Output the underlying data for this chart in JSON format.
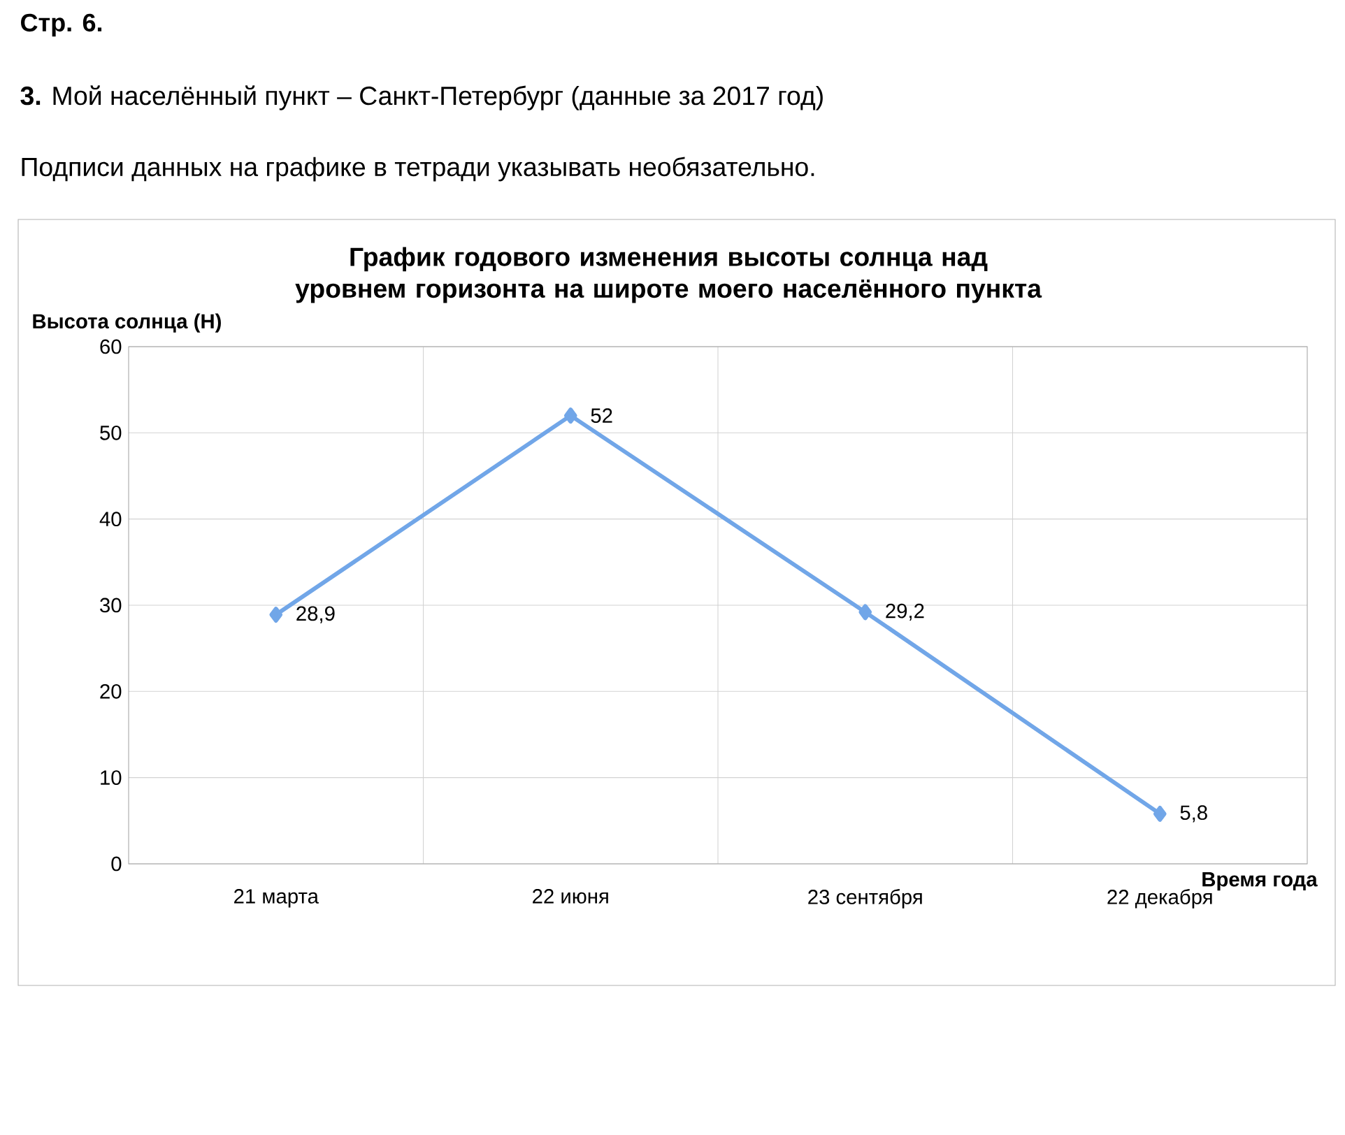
{
  "chart_data": {
    "type": "line",
    "title": "График годового изменения высоты солнца над уровнем горизонта на широте моего населённого пункта",
    "ylabel": "Высота солнца (H)",
    "xlabel": "Время года",
    "annotations": [
      "Стр. 6.",
      "**3.** Мой населённый пункт – Санкт-Петербург (данные за 2017 год)",
      "Подписи данных на графике в тетради указывать необязательно."
    ],
    "categories": [
      "21 марта",
      "22 июня",
      "23 сентября",
      "22 декабря"
    ],
    "series": [
      {
        "color": "#71a6e8",
        "values": [
          28.9,
          52,
          29.2,
          5.8
        ],
        "value_labels": [
          "28,9",
          "52",
          "29,2",
          "5,8"
        ]
      }
    ],
    "ylim": [
      0,
      60
    ],
    "yticks": [
      0,
      10,
      20,
      30,
      40,
      50,
      60
    ],
    "grid": true,
    "marker": "diamond",
    "line_style": "solid"
  }
}
